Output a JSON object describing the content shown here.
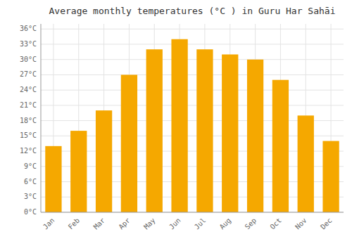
{
  "chart_data": {
    "type": "bar",
    "title": "Average monthly temperatures (°C ) in Guru Har Sahāi",
    "categories": [
      "Jan",
      "Feb",
      "Mar",
      "Apr",
      "May",
      "Jun",
      "Jul",
      "Aug",
      "Sep",
      "Oct",
      "Nov",
      "Dec"
    ],
    "values": [
      13,
      16,
      20,
      27,
      32,
      34,
      32,
      31,
      30,
      26,
      19,
      14
    ],
    "color": "#F5A800",
    "ylim": [
      0,
      37
    ],
    "yticks": [
      {
        "value": 0,
        "label": "0°C"
      },
      {
        "value": 3,
        "label": "3°C"
      },
      {
        "value": 6,
        "label": "6°C"
      },
      {
        "value": 9,
        "label": "9°C"
      },
      {
        "value": 12,
        "label": "12°C"
      },
      {
        "value": 15,
        "label": "15°C"
      },
      {
        "value": 18,
        "label": "18°C"
      },
      {
        "value": 21,
        "label": "21°C"
      },
      {
        "value": 24,
        "label": "24°C"
      },
      {
        "value": 27,
        "label": "27°C"
      },
      {
        "value": 30,
        "label": "30°C"
      },
      {
        "value": 33,
        "label": "33°C"
      },
      {
        "value": 36,
        "label": "36°C"
      }
    ],
    "grid": true
  }
}
